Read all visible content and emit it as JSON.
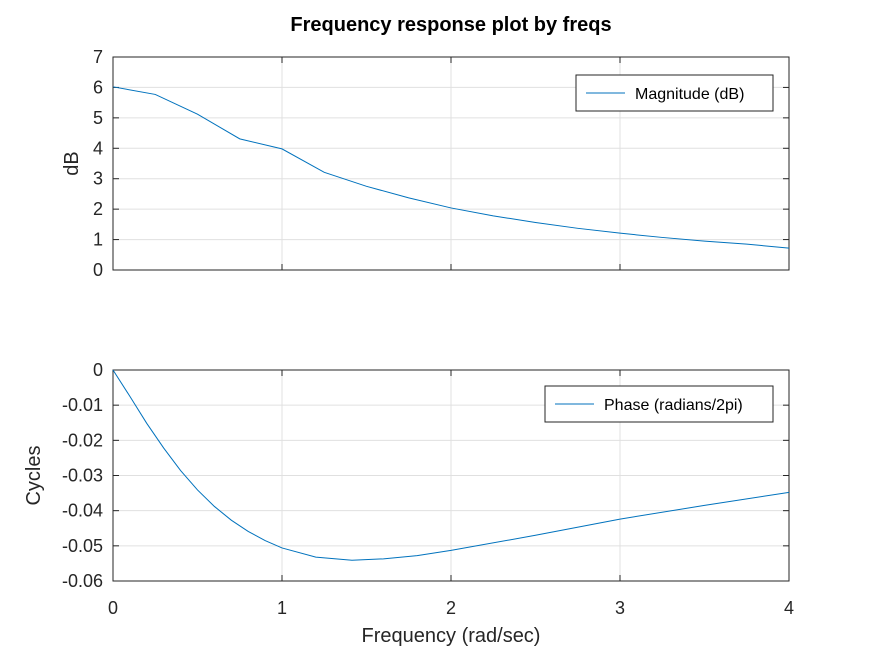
{
  "figure_title": "Frequency response plot by freqs",
  "xlabel": "Frequency (rad/sec)",
  "colors": {
    "series": "#0072BD",
    "grid": "#e0e0e0",
    "axis": "#262626"
  },
  "chart_data": [
    {
      "type": "line",
      "title": "Frequency response plot by freqs",
      "xlabel": "",
      "ylabel": "dB",
      "xlim": [
        0,
        4
      ],
      "ylim": [
        0,
        7
      ],
      "xticks": [
        "0",
        "1",
        "2",
        "3",
        "4"
      ],
      "yticks": [
        "0",
        "1",
        "2",
        "3",
        "4",
        "5",
        "6",
        "7"
      ],
      "grid": true,
      "legend_position": "top-right",
      "series": [
        {
          "name": "Magnitude (dB)",
          "x": [
            0,
            0.25,
            0.5,
            0.75,
            1,
            1.25,
            1.5,
            1.75,
            2,
            2.25,
            2.5,
            2.75,
            3,
            3.25,
            3.5,
            3.75,
            4
          ],
          "y": [
            6.02,
            5.77,
            5.12,
            4.31,
            3.98,
            3.21,
            2.75,
            2.37,
            2.04,
            1.78,
            1.56,
            1.37,
            1.21,
            1.07,
            0.95,
            0.85,
            0.72
          ]
        }
      ]
    },
    {
      "type": "line",
      "title": "",
      "xlabel": "Frequency (rad/sec)",
      "ylabel": "Cycles",
      "xlim": [
        0,
        4
      ],
      "ylim": [
        -0.06,
        0
      ],
      "xticks": [
        "0",
        "1",
        "2",
        "3",
        "4"
      ],
      "yticks": [
        "0",
        "-0.01",
        "-0.02",
        "-0.03",
        "-0.04",
        "-0.05",
        "-0.06"
      ],
      "grid": true,
      "legend_position": "top-right",
      "series": [
        {
          "name": "Phase (radians/2pi)",
          "x": [
            0,
            0.1,
            0.2,
            0.3,
            0.4,
            0.5,
            0.6,
            0.7,
            0.8,
            0.9,
            1.0,
            1.2,
            1.414,
            1.6,
            1.8,
            2.0,
            2.5,
            3.0,
            3.5,
            4.0
          ],
          "y": [
            0,
            -0.0075,
            -0.0152,
            -0.0222,
            -0.0286,
            -0.0341,
            -0.0388,
            -0.0427,
            -0.0459,
            -0.0485,
            -0.0506,
            -0.0532,
            -0.0541,
            -0.0537,
            -0.0528,
            -0.0513,
            -0.047,
            -0.0424,
            -0.0385,
            -0.0348
          ]
        }
      ]
    }
  ]
}
